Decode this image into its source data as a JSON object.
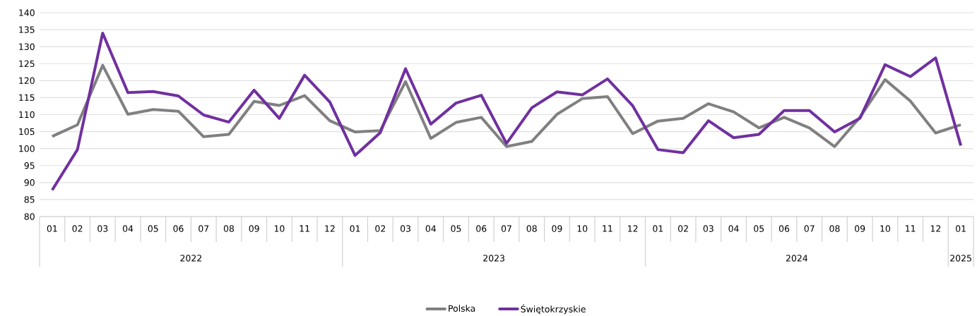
{
  "chart_data": {
    "type": "line",
    "categories": [
      "01",
      "02",
      "03",
      "04",
      "05",
      "06",
      "07",
      "08",
      "09",
      "10",
      "11",
      "12",
      "01",
      "02",
      "03",
      "04",
      "05",
      "06",
      "07",
      "08",
      "09",
      "10",
      "11",
      "12",
      "01",
      "02",
      "03",
      "04",
      "05",
      "06",
      "07",
      "08",
      "09",
      "10",
      "11",
      "12",
      "01"
    ],
    "annotations": [
      "2022",
      "2023",
      "2024",
      "2025"
    ],
    "series": [
      {
        "name": "Polska",
        "color": "#808080",
        "values": [
          103.6,
          107.0,
          124.5,
          110.1,
          111.5,
          111.0,
          103.5,
          104.2,
          113.9,
          112.7,
          115.6,
          108.2,
          104.9,
          105.3,
          119.7,
          103.0,
          107.7,
          109.2,
          100.6,
          102.1,
          110.1,
          114.7,
          115.3,
          104.4,
          108.1,
          108.9,
          113.2,
          110.8,
          106.1,
          109.2,
          106.1,
          100.6,
          109.2,
          120.3,
          114.0,
          104.6,
          107.0
        ]
      },
      {
        "name": "Świętokrzyskie",
        "color": "#7030a0",
        "values": [
          87.8,
          99.7,
          134.0,
          116.5,
          116.8,
          115.5,
          109.9,
          107.8,
          117.2,
          108.9,
          121.6,
          113.7,
          98.0,
          104.7,
          123.5,
          107.2,
          113.4,
          115.7,
          101.5,
          112.0,
          116.7,
          115.8,
          120.5,
          112.6,
          99.7,
          98.8,
          108.2,
          103.2,
          104.2,
          111.2,
          111.2,
          104.9,
          108.9,
          124.7,
          121.2,
          126.7,
          100.9
        ]
      }
    ],
    "ylim": [
      80,
      140
    ],
    "yticks": [
      80,
      85,
      90,
      95,
      100,
      105,
      110,
      115,
      120,
      125,
      130,
      135,
      140
    ],
    "grid": "y",
    "legend": "bottom",
    "line_style": "solid",
    "marker": "none"
  }
}
